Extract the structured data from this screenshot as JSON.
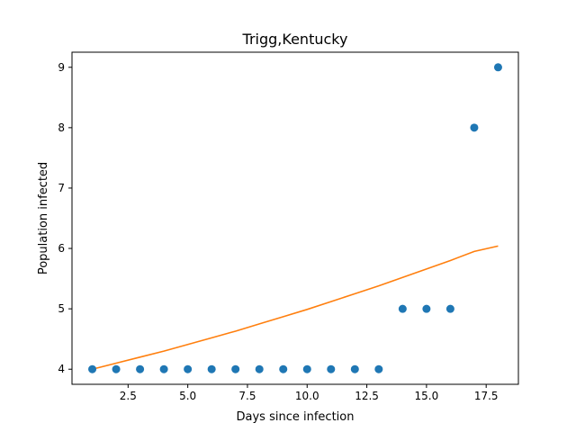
{
  "chart_data": {
    "type": "scatter",
    "title": "Trigg,Kentucky",
    "xlabel": "Days since infection",
    "ylabel": "Population infected",
    "xlim": [
      0.15,
      18.85
    ],
    "ylim": [
      3.75,
      9.25
    ],
    "xticks": [
      2.5,
      5.0,
      7.5,
      10.0,
      12.5,
      15.0,
      17.5
    ],
    "xtick_labels": [
      "2.5",
      "5.0",
      "7.5",
      "10.0",
      "12.5",
      "15.0",
      "17.5"
    ],
    "yticks": [
      4,
      5,
      6,
      7,
      8,
      9
    ],
    "ytick_labels": [
      "4",
      "5",
      "6",
      "7",
      "8",
      "9"
    ],
    "grid": false,
    "series": [
      {
        "kind": "scatter",
        "color": "#1f77b4",
        "x": [
          1,
          2,
          3,
          4,
          5,
          6,
          7,
          8,
          9,
          10,
          11,
          12,
          13,
          14,
          15,
          16,
          17,
          18
        ],
        "y": [
          4,
          4,
          4,
          4,
          4,
          4,
          4,
          4,
          4,
          4,
          4,
          4,
          4,
          5,
          5,
          5,
          8,
          9
        ]
      },
      {
        "kind": "line",
        "color": "#ff7f0e",
        "x": [
          1,
          2,
          3,
          4,
          5,
          6,
          7,
          8,
          9,
          10,
          11,
          12,
          13,
          14,
          15,
          16,
          17,
          18
        ],
        "y": [
          4.0,
          4.1,
          4.2,
          4.3,
          4.41,
          4.52,
          4.63,
          4.75,
          4.87,
          4.99,
          5.12,
          5.25,
          5.38,
          5.52,
          5.66,
          5.8,
          5.95,
          6.04
        ]
      }
    ]
  }
}
